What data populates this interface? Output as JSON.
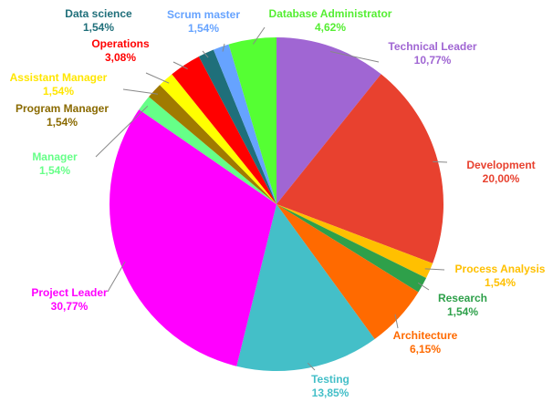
{
  "chart_data": {
    "type": "pie",
    "categories": [
      "Technical Leader",
      "Development",
      "Process Analysis",
      "Research",
      "Architecture",
      "Testing",
      "Project Leader",
      "Manager",
      "Program Manager",
      "Assistant Manager",
      "Operations",
      "Data science",
      "Scrum master",
      "Database Administrator"
    ],
    "values": [
      10.77,
      20.0,
      1.54,
      1.54,
      6.15,
      13.85,
      30.77,
      1.54,
      1.54,
      1.54,
      3.08,
      1.54,
      1.54,
      4.62
    ],
    "value_labels": [
      "10,77%",
      "20,00%",
      "1,54%",
      "1,54%",
      "6,15%",
      "13,85%",
      "30,77%",
      "1,54%",
      "1,54%",
      "1,54%",
      "3,08%",
      "1,54%",
      "1,54%",
      "4,62%"
    ],
    "colors": [
      "#a066d3",
      "#e8412f",
      "#ffc000",
      "#2ea04a",
      "#ff6a00",
      "#44bfc8",
      "#ff00ff",
      "#66ff88",
      "#a07a00",
      "#ffff00",
      "#ff0000",
      "#1f6f7a",
      "#66a3ff",
      "#55ff33"
    ],
    "label_colors": [
      "#a066d3",
      "#e8412f",
      "#ffc000",
      "#2ea04a",
      "#ff6a00",
      "#44bfc8",
      "#ff00ff",
      "#66ff88",
      "#8a6a00",
      "#ffe600",
      "#ff0000",
      "#1f6f7a",
      "#66a3ff",
      "#55ee33"
    ]
  }
}
